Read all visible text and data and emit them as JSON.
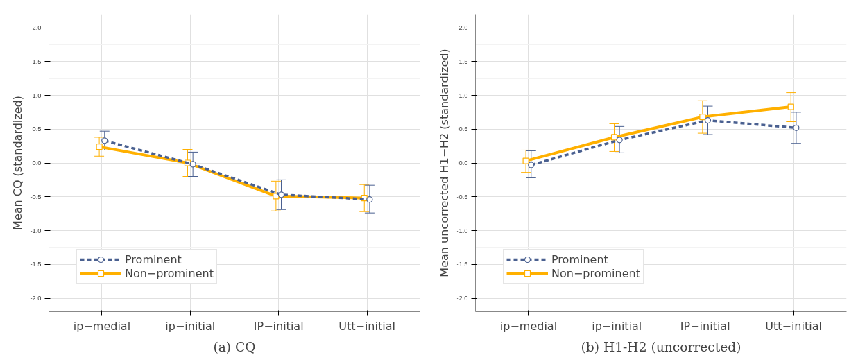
{
  "chart_data": [
    {
      "type": "line",
      "title": "(a) CQ",
      "ylabel": "Mean CQ (standardized)",
      "categories": [
        "ip−medial",
        "ip−initial",
        "IP−initial",
        "Utt−initial"
      ],
      "ylim": [
        -2.2,
        2.2
      ],
      "yticks": [
        {
          "value": -2,
          "label": "-2.0"
        },
        {
          "value": -1.5,
          "label": "-1.5"
        },
        {
          "value": -1,
          "label": "-1.0"
        },
        {
          "value": -0.5,
          "label": "-0.5"
        },
        {
          "value": 0,
          "label": "0.0"
        },
        {
          "value": 0.5,
          "label": "0.5"
        },
        {
          "value": 1,
          "label": "1.0"
        },
        {
          "value": 1.5,
          "label": "1.5"
        },
        {
          "value": 2,
          "label": "2.0"
        }
      ],
      "grid": true,
      "legend": "bottom left",
      "series": [
        {
          "name": "Prominent",
          "color": "#4a6090",
          "line_style": "dashed",
          "marker": "circle",
          "values": [
            0.33,
            -0.02,
            -0.47,
            -0.54
          ],
          "errors": [
            [
              0.19,
              0.47
            ],
            [
              -0.2,
              0.16
            ],
            [
              -0.69,
              -0.25
            ],
            [
              -0.74,
              -0.33
            ]
          ]
        },
        {
          "name": "Non−prominent",
          "color": "#ffb000",
          "line_style": "solid",
          "marker": "square",
          "values": [
            0.24,
            0.0,
            -0.49,
            -0.52
          ],
          "errors": [
            [
              0.1,
              0.38
            ],
            [
              -0.2,
              0.2
            ],
            [
              -0.71,
              -0.27
            ],
            [
              -0.72,
              -0.32
            ]
          ]
        }
      ]
    },
    {
      "type": "line",
      "title": "(b) H1-H2 (uncorrected)",
      "ylabel": "Mean uncorrected H1−H2 (standardized)",
      "categories": [
        "ip−medial",
        "ip−initial",
        "IP−initial",
        "Utt−initial"
      ],
      "ylim": [
        -2.2,
        2.2
      ],
      "yticks": [
        {
          "value": -2,
          "label": "-2.0"
        },
        {
          "value": -1.5,
          "label": "-1.5"
        },
        {
          "value": -1,
          "label": "-1.0"
        },
        {
          "value": -0.5,
          "label": "-0.5"
        },
        {
          "value": 0,
          "label": "0.0"
        },
        {
          "value": 0.5,
          "label": "0.5"
        },
        {
          "value": 1,
          "label": "1.0"
        },
        {
          "value": 1.5,
          "label": "1.5"
        },
        {
          "value": 2,
          "label": "2.0"
        }
      ],
      "grid": true,
      "legend": "bottom left",
      "series": [
        {
          "name": "Prominent",
          "color": "#4a6090",
          "line_style": "dashed",
          "marker": "circle",
          "values": [
            -0.03,
            0.34,
            0.63,
            0.52
          ],
          "errors": [
            [
              -0.22,
              0.18
            ],
            [
              0.15,
              0.54
            ],
            [
              0.42,
              0.84
            ],
            [
              0.29,
              0.75
            ]
          ]
        },
        {
          "name": "Non−prominent",
          "color": "#ffb000",
          "line_style": "solid",
          "marker": "square",
          "values": [
            0.03,
            0.38,
            0.68,
            0.83
          ],
          "errors": [
            [
              -0.14,
              0.19
            ],
            [
              0.17,
              0.58
            ],
            [
              0.44,
              0.92
            ],
            [
              0.61,
              1.04
            ]
          ]
        }
      ]
    }
  ]
}
